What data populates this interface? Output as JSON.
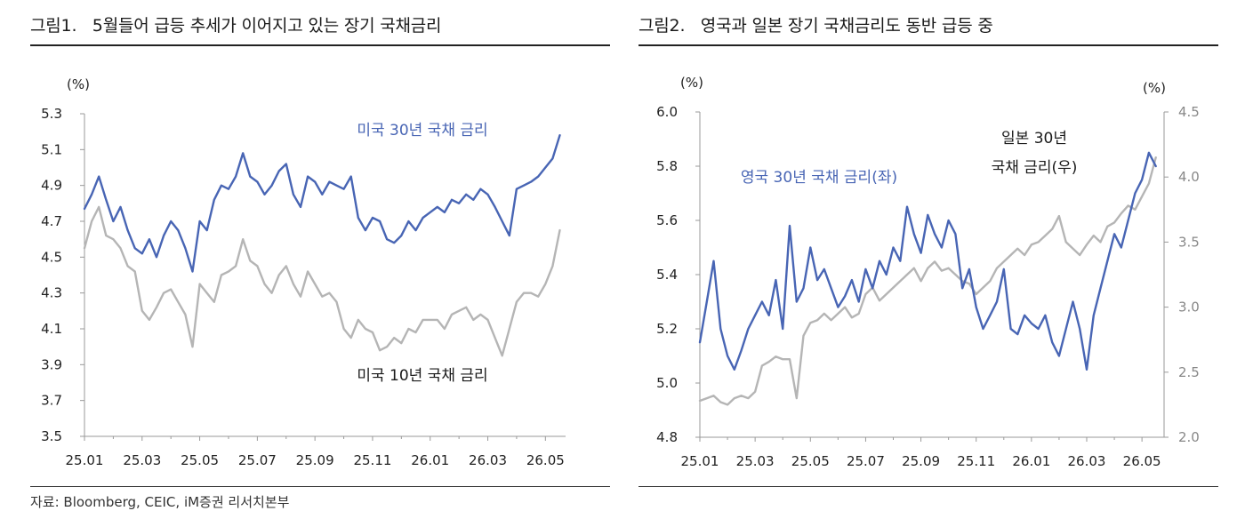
{
  "panel1": {
    "title": "그림1.   5월들어 급등 추세가 이어지고 있는 장기 국채금리"
  },
  "panel2": {
    "title": "그림2.   영국과 일본 장기 국채금리도 동반 급등 중"
  },
  "source": "자료: Bloomberg, CEIC, iM증권 리서치본부",
  "colors": {
    "blue": "#4865b4",
    "gray": "#b5b5b5",
    "axis": "#999999"
  },
  "chart_data": [
    {
      "type": "line",
      "title": "",
      "ylabel": "(%)",
      "ylim": [
        3.5,
        5.3
      ],
      "yticks": [
        "5.3",
        "5.1",
        "4.9",
        "4.7",
        "4.5",
        "4.3",
        "4.1",
        "3.9",
        "3.7",
        "3.5"
      ],
      "x_ticks": [
        "25.01",
        "25.03",
        "25.05",
        "25.07",
        "25.09",
        "25.11",
        "26.01",
        "26.03",
        "26.05"
      ],
      "x_range": [
        0,
        16.7
      ],
      "series": [
        {
          "name": "미국 30년 국채 금리",
          "color": "#4865b4",
          "x": [
            0,
            0.25,
            0.5,
            0.75,
            1,
            1.25,
            1.5,
            1.75,
            2,
            2.25,
            2.5,
            2.75,
            3,
            3.25,
            3.5,
            3.75,
            4,
            4.25,
            4.5,
            4.75,
            5,
            5.25,
            5.5,
            5.75,
            6,
            6.25,
            6.5,
            6.75,
            7,
            7.25,
            7.5,
            7.75,
            8,
            8.25,
            8.5,
            8.75,
            9,
            9.25,
            9.5,
            9.75,
            10,
            10.25,
            10.5,
            10.75,
            11,
            11.25,
            11.5,
            11.75,
            12,
            12.25,
            12.5,
            12.75,
            13,
            13.25,
            13.5,
            13.75,
            14,
            14.25,
            14.5,
            14.75,
            15,
            15.25,
            15.5,
            15.75,
            16,
            16.25,
            16.5
          ],
          "values": [
            4.77,
            4.85,
            4.95,
            4.82,
            4.7,
            4.78,
            4.65,
            4.55,
            4.52,
            4.6,
            4.5,
            4.62,
            4.7,
            4.65,
            4.55,
            4.42,
            4.7,
            4.65,
            4.82,
            4.9,
            4.88,
            4.95,
            5.08,
            4.95,
            4.92,
            4.85,
            4.9,
            4.98,
            5.02,
            4.85,
            4.78,
            4.95,
            4.92,
            4.85,
            4.92,
            4.9,
            4.88,
            4.95,
            4.72,
            4.65,
            4.72,
            4.7,
            4.6,
            4.58,
            4.62,
            4.7,
            4.65,
            4.72,
            4.75,
            4.78,
            4.75,
            4.82,
            4.8,
            4.85,
            4.82,
            4.88,
            4.85,
            4.78,
            4.7,
            4.62,
            4.88,
            4.9,
            4.92,
            4.95,
            5.0,
            5.05,
            5.18
          ]
        },
        {
          "name": "미국 10년 국채 금리",
          "color": "#b5b5b5",
          "x": [
            0,
            0.25,
            0.5,
            0.75,
            1,
            1.25,
            1.5,
            1.75,
            2,
            2.25,
            2.5,
            2.75,
            3,
            3.25,
            3.5,
            3.75,
            4,
            4.25,
            4.5,
            4.75,
            5,
            5.25,
            5.5,
            5.75,
            6,
            6.25,
            6.5,
            6.75,
            7,
            7.25,
            7.5,
            7.75,
            8,
            8.25,
            8.5,
            8.75,
            9,
            9.25,
            9.5,
            9.75,
            10,
            10.25,
            10.5,
            10.75,
            11,
            11.25,
            11.5,
            11.75,
            12,
            12.25,
            12.5,
            12.75,
            13,
            13.25,
            13.5,
            13.75,
            14,
            14.25,
            14.5,
            14.75,
            15,
            15.25,
            15.5,
            15.75,
            16,
            16.25,
            16.5
          ],
          "values": [
            4.55,
            4.7,
            4.78,
            4.62,
            4.6,
            4.55,
            4.45,
            4.42,
            4.2,
            4.15,
            4.22,
            4.3,
            4.32,
            4.25,
            4.18,
            4.0,
            4.35,
            4.3,
            4.25,
            4.4,
            4.42,
            4.45,
            4.6,
            4.48,
            4.45,
            4.35,
            4.3,
            4.4,
            4.45,
            4.35,
            4.28,
            4.42,
            4.35,
            4.28,
            4.3,
            4.25,
            4.1,
            4.05,
            4.15,
            4.1,
            4.08,
            3.98,
            4.0,
            4.05,
            4.02,
            4.1,
            4.08,
            4.15,
            4.15,
            4.15,
            4.1,
            4.18,
            4.2,
            4.22,
            4.15,
            4.18,
            4.15,
            4.05,
            3.95,
            4.1,
            4.25,
            4.3,
            4.3,
            4.28,
            4.35,
            4.45,
            4.65
          ]
        }
      ],
      "annotations": [
        "미국 30년 국채 금리",
        "미국 10년 국채 금리"
      ]
    },
    {
      "type": "line",
      "title": "",
      "ylabel": "(%)",
      "ylabel_right": "(%)",
      "ylim": [
        4.8,
        6.0
      ],
      "ylim_right": [
        2.0,
        4.5
      ],
      "yticks": [
        "6.0",
        "5.8",
        "5.6",
        "5.4",
        "5.2",
        "5.0",
        "4.8"
      ],
      "yticks_right": [
        "4.5",
        "4.0",
        "3.5",
        "3.0",
        "2.5",
        "2.0"
      ],
      "x_ticks": [
        "25.01",
        "25.03",
        "25.05",
        "25.07",
        "25.09",
        "25.11",
        "26.01",
        "26.03",
        "26.05"
      ],
      "x_range": [
        0,
        16.8
      ],
      "series": [
        {
          "name": "영국 30년 국채 금리(좌)",
          "axis": "left",
          "color": "#4865b4",
          "x": [
            0,
            0.25,
            0.5,
            0.75,
            1,
            1.25,
            1.5,
            1.75,
            2,
            2.25,
            2.5,
            2.75,
            3,
            3.25,
            3.5,
            3.75,
            4,
            4.25,
            4.5,
            4.75,
            5,
            5.25,
            5.5,
            5.75,
            6,
            6.25,
            6.5,
            6.75,
            7,
            7.25,
            7.5,
            7.75,
            8,
            8.25,
            8.5,
            8.75,
            9,
            9.25,
            9.5,
            9.75,
            10,
            10.25,
            10.5,
            10.75,
            11,
            11.25,
            11.5,
            11.75,
            12,
            12.25,
            12.5,
            12.75,
            13,
            13.25,
            13.5,
            13.75,
            14,
            14.25,
            14.5,
            14.75,
            15,
            15.25,
            15.5,
            15.75,
            16,
            16.25,
            16.5
          ],
          "values": [
            5.15,
            5.3,
            5.45,
            5.2,
            5.1,
            5.05,
            5.12,
            5.2,
            5.25,
            5.3,
            5.25,
            5.38,
            5.2,
            5.58,
            5.3,
            5.35,
            5.5,
            5.38,
            5.42,
            5.35,
            5.28,
            5.32,
            5.38,
            5.3,
            5.42,
            5.35,
            5.45,
            5.4,
            5.5,
            5.45,
            5.65,
            5.55,
            5.48,
            5.62,
            5.55,
            5.5,
            5.6,
            5.55,
            5.35,
            5.42,
            5.28,
            5.2,
            5.25,
            5.3,
            5.42,
            5.2,
            5.18,
            5.25,
            5.22,
            5.2,
            5.25,
            5.15,
            5.1,
            5.2,
            5.3,
            5.2,
            5.05,
            5.25,
            5.35,
            5.45,
            5.55,
            5.5,
            5.6,
            5.7,
            5.75,
            5.85,
            5.8
          ]
        },
        {
          "name": "일본 30년 국채 금리(우)",
          "axis": "right",
          "color": "#b5b5b5",
          "x": [
            0,
            0.25,
            0.5,
            0.75,
            1,
            1.25,
            1.5,
            1.75,
            2,
            2.25,
            2.5,
            2.75,
            3,
            3.25,
            3.5,
            3.75,
            4,
            4.25,
            4.5,
            4.75,
            5,
            5.25,
            5.5,
            5.75,
            6,
            6.25,
            6.5,
            6.75,
            7,
            7.25,
            7.5,
            7.75,
            8,
            8.25,
            8.5,
            8.75,
            9,
            9.25,
            9.5,
            9.75,
            10,
            10.25,
            10.5,
            10.75,
            11,
            11.25,
            11.5,
            11.75,
            12,
            12.25,
            12.5,
            12.75,
            13,
            13.25,
            13.5,
            13.75,
            14,
            14.25,
            14.5,
            14.75,
            15,
            15.25,
            15.5,
            15.75,
            16,
            16.25,
            16.5
          ],
          "values": [
            2.28,
            2.3,
            2.32,
            2.27,
            2.25,
            2.3,
            2.32,
            2.3,
            2.35,
            2.55,
            2.58,
            2.62,
            2.6,
            2.6,
            2.3,
            2.78,
            2.88,
            2.9,
            2.95,
            2.9,
            2.95,
            3.0,
            2.92,
            2.95,
            3.1,
            3.15,
            3.05,
            3.1,
            3.15,
            3.2,
            3.25,
            3.3,
            3.2,
            3.3,
            3.35,
            3.28,
            3.3,
            3.25,
            3.2,
            3.18,
            3.1,
            3.15,
            3.2,
            3.3,
            3.35,
            3.4,
            3.45,
            3.4,
            3.48,
            3.5,
            3.55,
            3.6,
            3.7,
            3.5,
            3.45,
            3.4,
            3.48,
            3.55,
            3.5,
            3.62,
            3.65,
            3.72,
            3.78,
            3.75,
            3.85,
            3.95,
            4.15
          ]
        }
      ],
      "annotations": [
        "영국 30년 국채 금리(좌)",
        "일본 30년",
        "국채 금리(우)"
      ]
    }
  ]
}
